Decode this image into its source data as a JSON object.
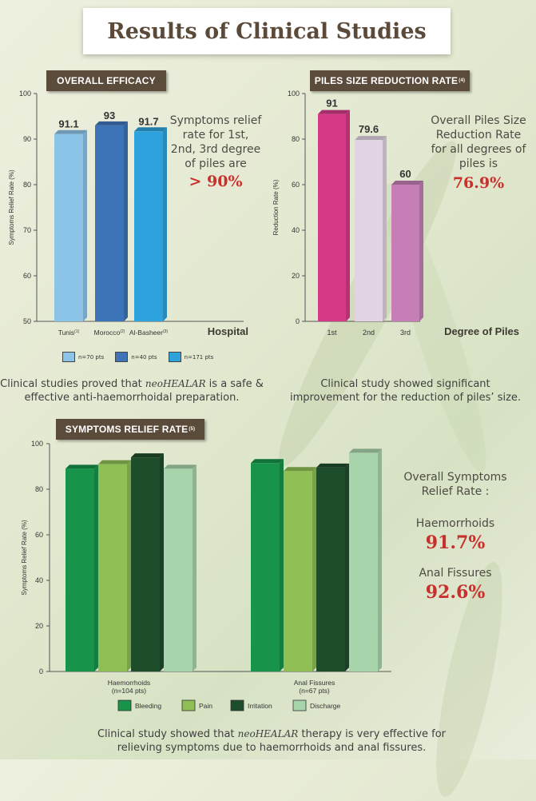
{
  "title": "Results of Clinical Studies",
  "brand": "neoHEALAR",
  "efficacy": {
    "label": "OVERALL EFFICACY",
    "side": {
      "line1": "Symptoms relief",
      "line2": "rate for 1st,",
      "line3": "2nd, 3rd degree",
      "line4": "of piles are",
      "value": "> 90%"
    },
    "caption_pre": "Clinical studies proved that",
    "caption_post": "is a safe &",
    "caption_line2": "effective anti-haemorrhoidal preparation.",
    "legend": [
      "n=70 pts",
      "n=40 pts",
      "n=171 pts"
    ]
  },
  "piles": {
    "label": "PILES SIZE REDUCTION RATE",
    "label_sup": "(4)",
    "side": {
      "line1": "Overall Piles Size",
      "line2": "Reduction Rate",
      "line3": "for all degrees of",
      "line4": "piles is",
      "value": "76.9%"
    },
    "caption_line1": "Clinical study showed significant",
    "caption_line2": "improvement for the reduction of piles’ size."
  },
  "relief": {
    "label": "SYMPTOMS RELIEF RATE",
    "label_sup": "(5)",
    "side": {
      "line1": "Overall Symptoms",
      "line2": "Relief Rate :",
      "haem_label": "Haemorrhoids",
      "haem_value": "91.7%",
      "anal_label": "Anal Fissures",
      "anal_value": "92.6%"
    },
    "caption_pre": "Clinical study showed that",
    "caption_post": "therapy is very effective for",
    "caption_line2": "relieving symptoms due to haemorrhoids and anal fissures."
  },
  "chart_data": [
    {
      "type": "bar",
      "title": "OVERALL EFFICACY",
      "xlabel": "Hospital",
      "ylabel": "Symptoms Relief Rate (%)",
      "ylim": [
        50,
        100
      ],
      "yticks": [
        50,
        60,
        70,
        80,
        90,
        100
      ],
      "categories": [
        "Tunis",
        "Morocco",
        "Al-Basheer"
      ],
      "category_refs": [
        "(1)",
        "(2)",
        "(3)"
      ],
      "values": [
        91.1,
        93,
        91.7
      ],
      "value_labels": [
        "91.1",
        "93",
        "91.7"
      ],
      "colors": [
        "#8cc4e8",
        "#3d74b8",
        "#2ea2dc"
      ],
      "legend": [
        "n=70 pts",
        "n=40 pts",
        "n=171 pts"
      ]
    },
    {
      "type": "bar",
      "title": "PILES SIZE REDUCTION RATE",
      "xlabel": "Degree of Piles",
      "ylabel": "Reduction Rate (%)",
      "ylim": [
        0,
        100
      ],
      "yticks": [
        0,
        20,
        40,
        60,
        80,
        100
      ],
      "categories": [
        "1st",
        "2nd",
        "3rd"
      ],
      "values": [
        91,
        79.6,
        60
      ],
      "value_labels": [
        "91",
        "79.6",
        "60"
      ],
      "colors": [
        "#d43a86",
        "#e2d3e2",
        "#c57fb6"
      ]
    },
    {
      "type": "bar",
      "title": "SYMPTOMS RELIEF RATE",
      "ylabel": "Symptoms Relief Rate (%)",
      "ylim": [
        0,
        100
      ],
      "yticks": [
        0,
        20,
        40,
        60,
        80,
        100
      ],
      "groups": [
        {
          "label": "Haemorrhoids",
          "sublabel": "(n=104 pts)"
        },
        {
          "label": "Anal Fissures",
          "sublabel": "(n=67 pts)"
        }
      ],
      "series": [
        {
          "name": "Bleeding",
          "values": [
            89,
            91.5
          ],
          "color": "#17944a"
        },
        {
          "name": "Pain",
          "values": [
            91,
            88
          ],
          "color": "#8fbf55"
        },
        {
          "name": "Irritation",
          "values": [
            94,
            89.5
          ],
          "color": "#1e4d2b"
        },
        {
          "name": "Discharge",
          "values": [
            89,
            96
          ],
          "color": "#a8d4ac"
        }
      ],
      "legend_placement": "bottom"
    }
  ]
}
